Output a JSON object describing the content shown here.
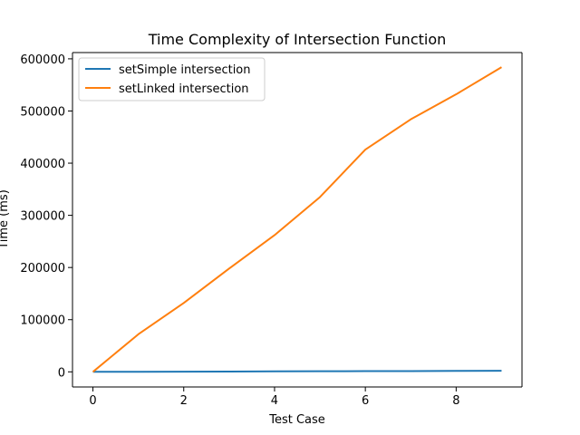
{
  "chart_data": {
    "type": "line",
    "title": "Time Complexity of Intersection Function",
    "xlabel": "Test Case",
    "ylabel": "Time (ms)",
    "x": [
      0,
      1,
      2,
      3,
      4,
      5,
      6,
      7,
      8,
      9
    ],
    "xlim": [
      -0.45,
      9.45
    ],
    "ylim": [
      -29000,
      612000
    ],
    "xticks": [
      0,
      2,
      4,
      6,
      8
    ],
    "yticks": [
      0,
      100000,
      200000,
      300000,
      400000,
      500000,
      600000
    ],
    "grid": false,
    "legend_position": "upper-left",
    "series": [
      {
        "name": "setSimple intersection",
        "color": "#1f77b4",
        "values": [
          0,
          200,
          400,
          600,
          900,
          1100,
          1300,
          1500,
          1800,
          2000
        ]
      },
      {
        "name": "setLinked intersection",
        "color": "#ff7f0e",
        "values": [
          0,
          72000,
          132000,
          198000,
          262000,
          335000,
          426000,
          484000,
          532000,
          584000
        ]
      }
    ]
  }
}
